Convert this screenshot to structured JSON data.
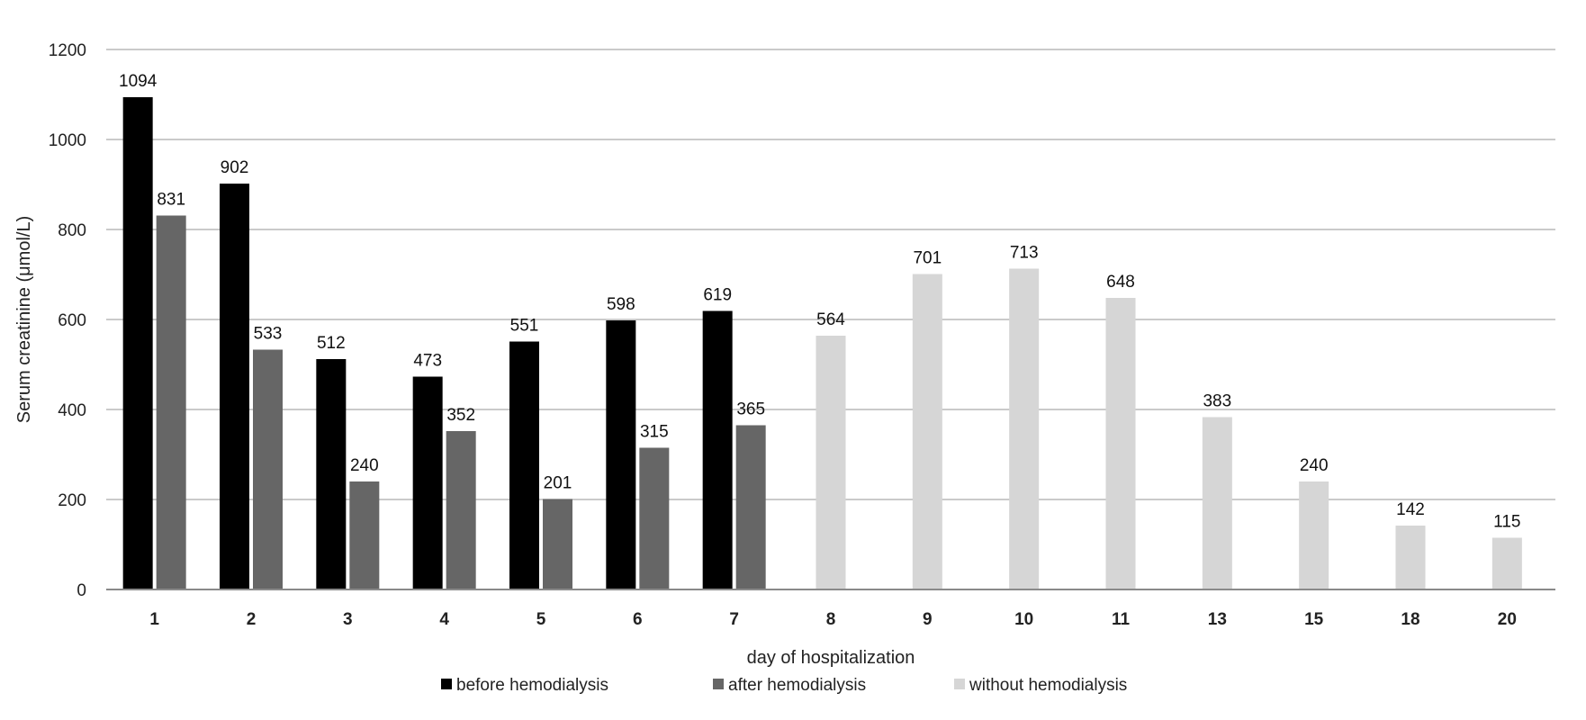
{
  "chart_data": {
    "type": "bar",
    "title": "",
    "xlabel": "day of hospitalization",
    "ylabel": "Serum creatinine (μmol/L)",
    "ylim": [
      0,
      1200
    ],
    "yticks": [
      0,
      200,
      400,
      600,
      800,
      1000,
      1200
    ],
    "grid": true,
    "legend_position": "bottom",
    "categories": [
      "1",
      "2",
      "3",
      "4",
      "5",
      "6",
      "7",
      "8",
      "9",
      "10",
      "11",
      "13",
      "15",
      "18",
      "20"
    ],
    "series": [
      {
        "name": "before hemodialysis",
        "color": "#000000",
        "values": [
          1094,
          902,
          512,
          473,
          551,
          598,
          619,
          null,
          null,
          null,
          null,
          null,
          null,
          null,
          null
        ]
      },
      {
        "name": "after hemodialysis",
        "color": "#666666",
        "values": [
          831,
          533,
          240,
          352,
          201,
          315,
          365,
          null,
          null,
          null,
          null,
          null,
          null,
          null,
          null
        ]
      },
      {
        "name": "without hemodialysis",
        "color": "#d6d6d6",
        "values": [
          null,
          null,
          null,
          null,
          null,
          null,
          null,
          564,
          701,
          713,
          648,
          383,
          240,
          142,
          115
        ]
      }
    ]
  }
}
